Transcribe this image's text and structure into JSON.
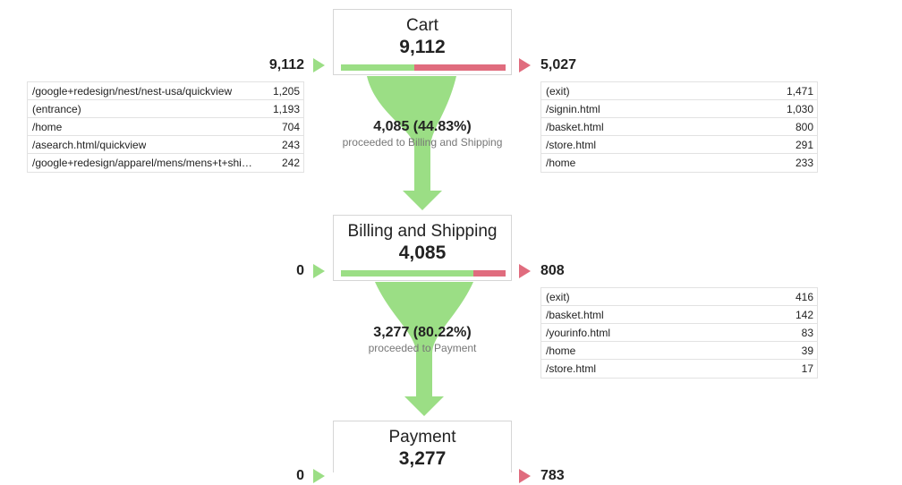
{
  "steps": [
    {
      "name": "Cart",
      "count": "9,112",
      "proceed_fraction": 0.4483,
      "entrances": "9,112",
      "exits": "5,027",
      "entrance_table": [
        {
          "path": "/google+redesign/nest/nest-usa/quickview",
          "value": "1,205"
        },
        {
          "path": "(entrance)",
          "value": "1,193"
        },
        {
          "path": "/home",
          "value": "704"
        },
        {
          "path": "/asearch.html/quickview",
          "value": "243"
        },
        {
          "path": "/google+redesign/apparel/mens/mens+t+shi…",
          "value": "242"
        }
      ],
      "exit_table": [
        {
          "path": "(exit)",
          "value": "1,471"
        },
        {
          "path": "/signin.html",
          "value": "1,030"
        },
        {
          "path": "/basket.html",
          "value": "800"
        },
        {
          "path": "/store.html",
          "value": "291"
        },
        {
          "path": "/home",
          "value": "233"
        }
      ]
    },
    {
      "name": "Billing and Shipping",
      "count": "4,085",
      "proceed_fraction": 0.8022,
      "entrances": "0",
      "exits": "808",
      "exit_table": [
        {
          "path": "(exit)",
          "value": "416"
        },
        {
          "path": "/basket.html",
          "value": "142"
        },
        {
          "path": "/yourinfo.html",
          "value": "83"
        },
        {
          "path": "/home",
          "value": "39"
        },
        {
          "path": "/store.html",
          "value": "17"
        }
      ]
    },
    {
      "name": "Payment",
      "count": "3,277",
      "entrances": "0",
      "exits": "783"
    }
  ],
  "flows": [
    {
      "main": "4,085 (44.83%)",
      "sub": "proceeded to Billing and Shipping"
    },
    {
      "main": "3,277 (80.22%)",
      "sub": "proceeded to Payment"
    }
  ],
  "colors": {
    "proceed": "#9bde85",
    "exit": "#e06c7e"
  }
}
